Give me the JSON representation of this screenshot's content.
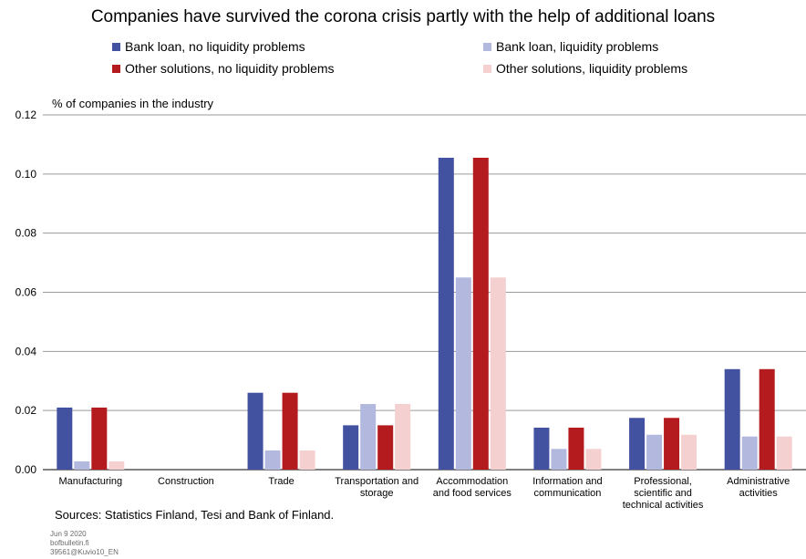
{
  "title": "Companies have survived the corona crisis partly with the help of additional loans",
  "ylabel": "% of companies in the industry",
  "source": "Sources: Statistics Finland, Tesi and Bank of Finland.",
  "meta": {
    "date": "Jun 9 2020",
    "site": "bofbulletin.fi",
    "code": "39561@Kuvio10_EN"
  },
  "chart_data": {
    "type": "bar",
    "title": "Companies have survived the corona crisis partly with the help of additional loans",
    "ylabel": "% of companies in the industry",
    "ylim": [
      0,
      0.12
    ],
    "yticks": [
      "0.00",
      "0.02",
      "0.04",
      "0.06",
      "0.08",
      "0.10",
      "0.12"
    ],
    "grid": true,
    "legend_position": "top",
    "categories": [
      [
        "Manufacturing"
      ],
      [
        "Construction"
      ],
      [
        "Trade"
      ],
      [
        "Transportation and",
        "storage"
      ],
      [
        "Accommodation",
        "and food services"
      ],
      [
        "Information and",
        "communication"
      ],
      [
        "Professional,",
        "scientific and",
        "technical activities"
      ],
      [
        "Administrative",
        "activities"
      ]
    ],
    "series": [
      {
        "name": "Bank loan, no liquidity problems",
        "color": "#4351a1",
        "values": [
          0.021,
          0,
          0.026,
          0.015,
          0.1055,
          0.0142,
          0.0175,
          0.034
        ]
      },
      {
        "name": "Bank loan, liquidity problems",
        "color": "#b3b8de",
        "values": [
          0.0028,
          0,
          0.0065,
          0.0222,
          0.065,
          0.007,
          0.0118,
          0.0112
        ]
      },
      {
        "name": "Other solutions, no liquidity problems",
        "color": "#b31b1e",
        "values": [
          0.021,
          0,
          0.026,
          0.015,
          0.1055,
          0.0142,
          0.0175,
          0.034
        ]
      },
      {
        "name": "Other solutions, liquidity problems",
        "color": "#f4d0d0",
        "values": [
          0.0028,
          0,
          0.0065,
          0.0222,
          0.065,
          0.007,
          0.0118,
          0.0112
        ]
      }
    ]
  }
}
